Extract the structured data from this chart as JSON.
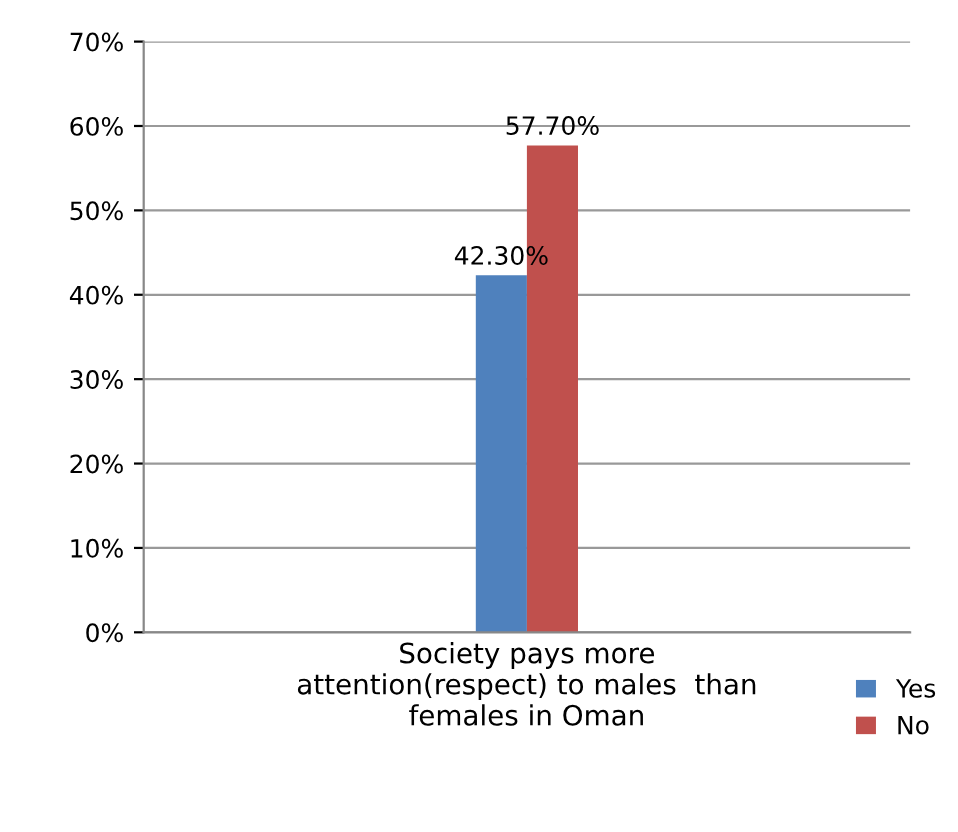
{
  "chart_data": {
    "type": "bar",
    "categories": [
      "Society pays more\nattention(respect) to males  than\nfemales in Oman"
    ],
    "series": [
      {
        "name": "Yes",
        "color": "#4f81bd",
        "values": [
          42.3
        ],
        "value_labels": [
          "42.30%"
        ]
      },
      {
        "name": "No",
        "color": "#c0504d",
        "values": [
          57.7
        ],
        "value_labels": [
          "57.70%"
        ]
      }
    ],
    "ylim": [
      0,
      70
    ],
    "yticks": [
      {
        "value": 0,
        "label": "0%"
      },
      {
        "value": 10,
        "label": "10%"
      },
      {
        "value": 20,
        "label": "20%"
      },
      {
        "value": 30,
        "label": "30%"
      },
      {
        "value": 40,
        "label": "40%"
      },
      {
        "value": 50,
        "label": "50%"
      },
      {
        "value": 60,
        "label": "60%"
      },
      {
        "value": 70,
        "label": "70%"
      }
    ],
    "grid": "y",
    "legend": "right"
  }
}
